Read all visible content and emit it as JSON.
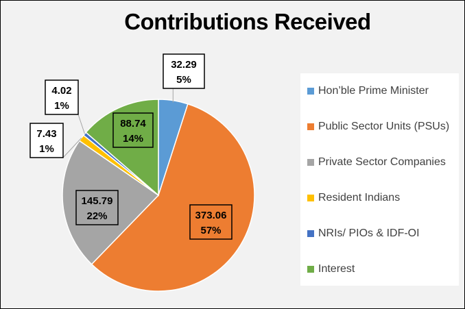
{
  "chart_data": {
    "type": "pie",
    "title": "Contributions Received",
    "slices": [
      {
        "name": "Hon’ble Prime Minister",
        "value": 32.29,
        "percent_label": "5%",
        "color": "#5b9bd5"
      },
      {
        "name": "Public Sector Units (PSUs)",
        "value": 373.06,
        "percent_label": "57%",
        "color": "#ed7d31"
      },
      {
        "name": "Private Sector Companies",
        "value": 145.79,
        "percent_label": "22%",
        "color": "#a5a5a5"
      },
      {
        "name": "Resident Indians",
        "value": 7.43,
        "percent_label": "1%",
        "color": "#ffc000"
      },
      {
        "name": "NRIs/ PIOs & IDF-OI",
        "value": 4.02,
        "percent_label": "1%",
        "color": "#4472c4"
      },
      {
        "name": "Interest",
        "value": 88.74,
        "percent_label": "14%",
        "color": "#70ad47"
      }
    ],
    "legend_position": "right",
    "start_angle_deg": 0,
    "direction": "clockwise"
  }
}
